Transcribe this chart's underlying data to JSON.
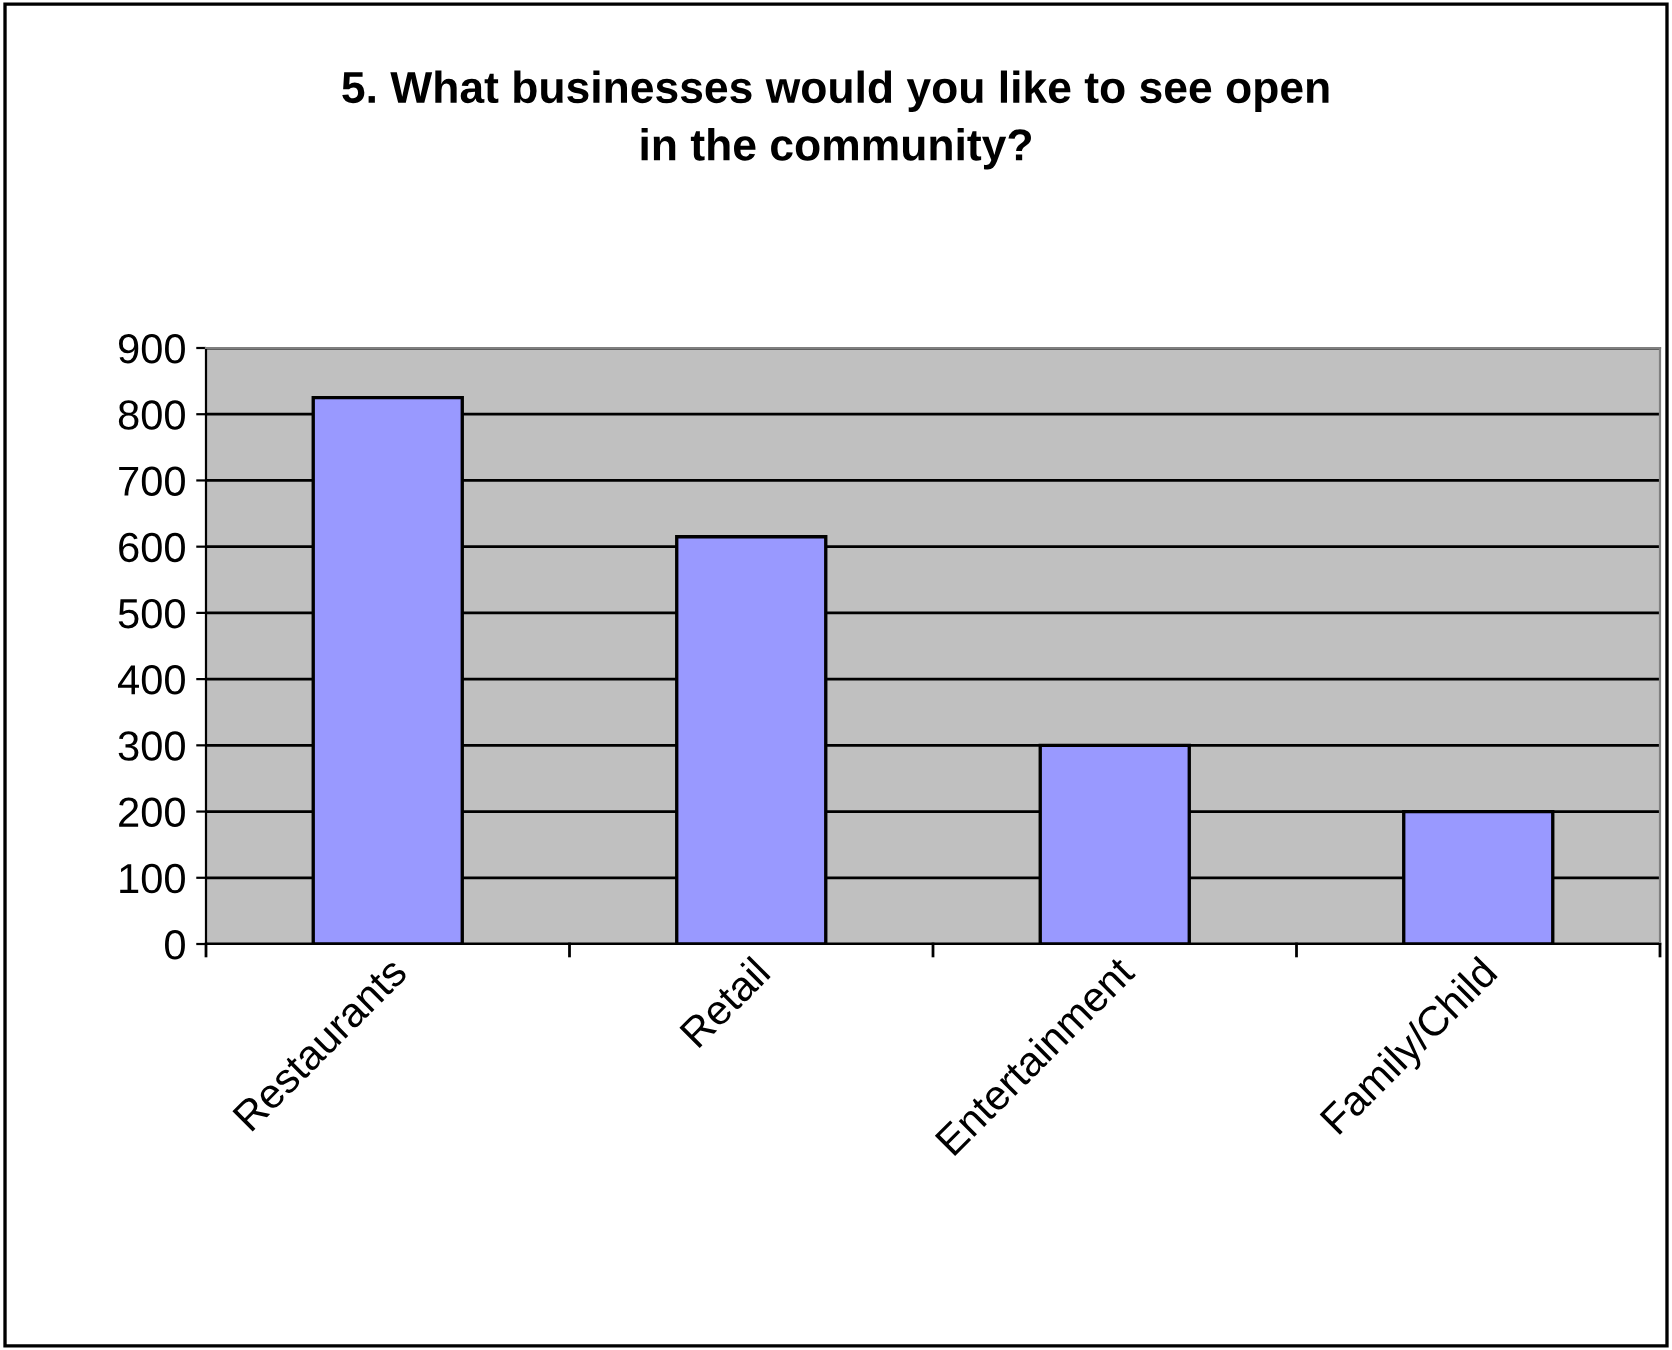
{
  "chart_data": {
    "type": "bar",
    "title": "5. What businesses would you like to see open\nin the community?",
    "categories": [
      "Restaurants",
      "Retail",
      "Entertainment",
      "Family/Child"
    ],
    "values": [
      825,
      615,
      300,
      200
    ],
    "color": "#9999ff",
    "ylim": [
      0,
      900
    ],
    "yticks": [
      0,
      100,
      200,
      300,
      400,
      500,
      600,
      700,
      800,
      900
    ],
    "grid": "y",
    "legend": false
  }
}
